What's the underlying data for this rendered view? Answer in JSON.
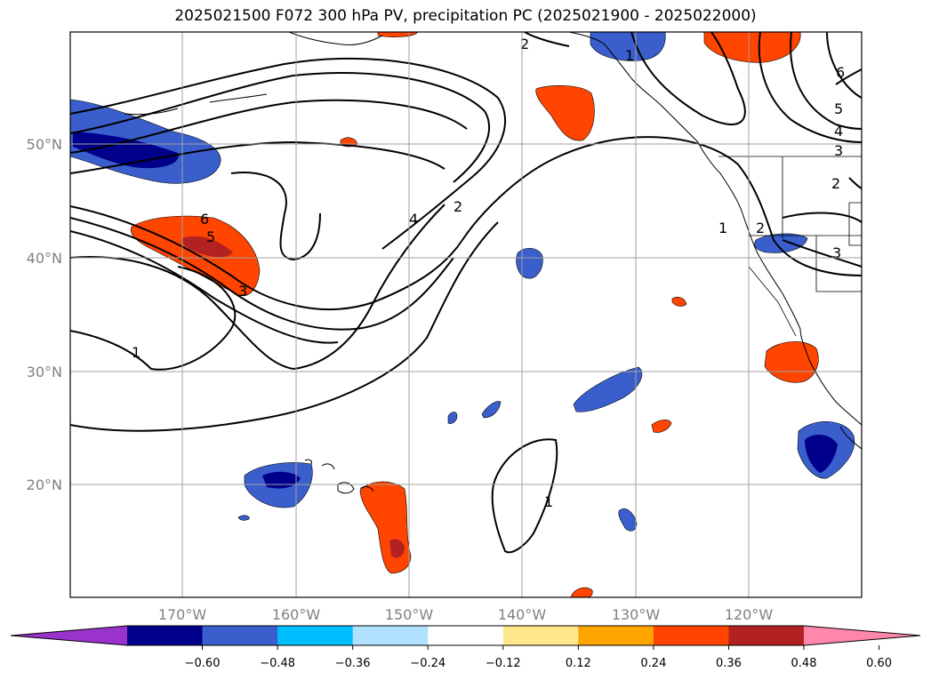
{
  "title": "2025021500 F072 300 hPa PV, precipitation PC (2025021900 - 2025022000)",
  "lat_labels": [
    "50°N",
    "40°N",
    "30°N",
    "20°N"
  ],
  "lon_labels": [
    "170°W",
    "160°W",
    "150°W",
    "140°W",
    "130°W",
    "120°W"
  ],
  "colorbar": {
    "ticks": [
      "−0.60",
      "−0.48",
      "−0.36",
      "−0.24",
      "−0.12",
      "0.12",
      "0.24",
      "0.36",
      "0.48",
      "0.60"
    ],
    "colors": [
      "#9933cc",
      "#00008b",
      "#3a5fcd",
      "#00bfff",
      "#b0e2ff",
      "#ffffff",
      "#ffe88c",
      "#ffa500",
      "#ff4500",
      "#b22222",
      "#ff88aa"
    ]
  },
  "contour_labels": {
    "a": "6",
    "b": "5",
    "c": "3",
    "d": "1",
    "e": "4",
    "f": "2",
    "g": "1",
    "h": "2",
    "i": "1",
    "j": "6",
    "k": "5",
    "l": "4",
    "m": "3",
    "n": "2",
    "o": "1",
    "p": "2",
    "q": "3"
  }
}
